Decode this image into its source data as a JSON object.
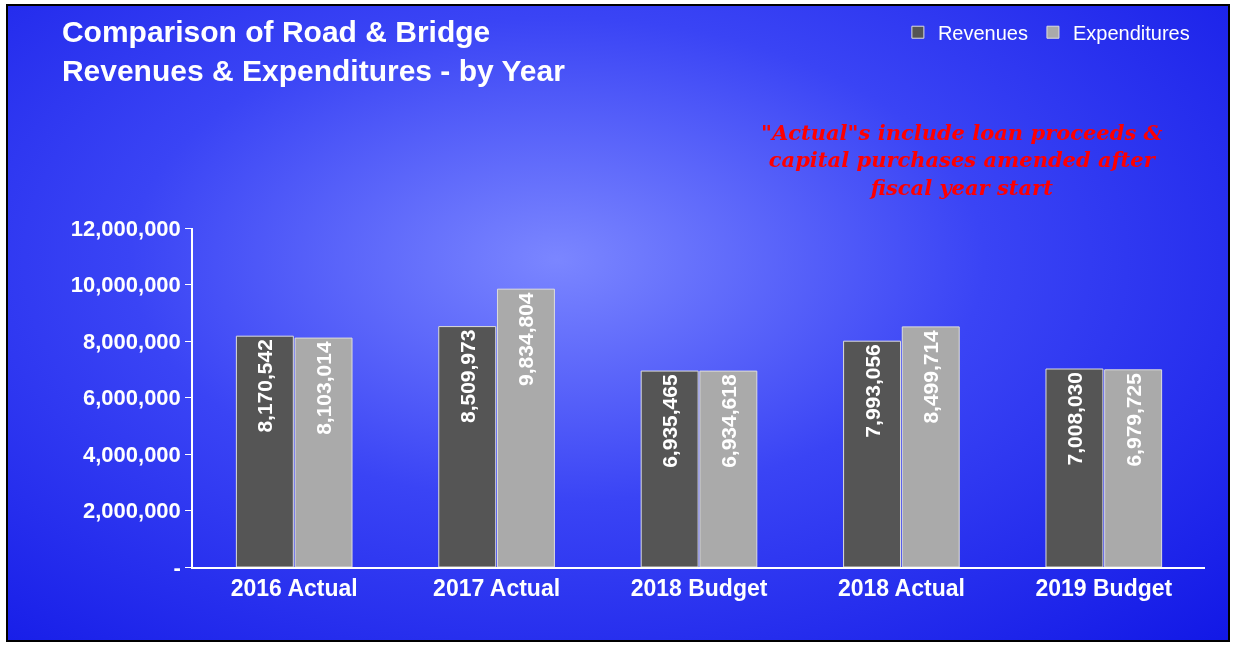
{
  "chart_data": {
    "type": "bar",
    "title": "Comparison of Road & Bridge\nRevenues & Expenditures - by Year",
    "categories": [
      "2016 Actual",
      "2017 Actual",
      "2018 Budget",
      "2018 Actual",
      "2019 Budget"
    ],
    "series": [
      {
        "name": "Revenues",
        "color": "#555555",
        "values": [
          8170542,
          8509973,
          6935465,
          7993056,
          7008030
        ],
        "value_labels": [
          "8,170,542",
          "8,509,973",
          "6,935,465",
          "7,993,056",
          "7,008,030"
        ]
      },
      {
        "name": "Expenditures",
        "color": "#aaaaaa",
        "values": [
          8103014,
          9834804,
          6934618,
          8499714,
          6979725
        ],
        "value_labels": [
          "8,103,014",
          "9,834,804",
          "6,934,618",
          "8,499,714",
          "6,979,725"
        ]
      }
    ],
    "ylim": [
      0,
      12000000
    ],
    "yticks": [
      {
        "value": 0,
        "label": "-"
      },
      {
        "value": 2000000,
        "label": "2,000,000"
      },
      {
        "value": 4000000,
        "label": "4,000,000"
      },
      {
        "value": 6000000,
        "label": "6,000,000"
      },
      {
        "value": 8000000,
        "label": "8,000,000"
      },
      {
        "value": 10000000,
        "label": "10,000,000"
      },
      {
        "value": 12000000,
        "label": "12,000,000"
      }
    ],
    "grid": false,
    "legend": "top right",
    "annotations": [
      "\"Actual\"s include loan proceeds &\ncapital purchases amended after\nfiscal year start"
    ]
  }
}
